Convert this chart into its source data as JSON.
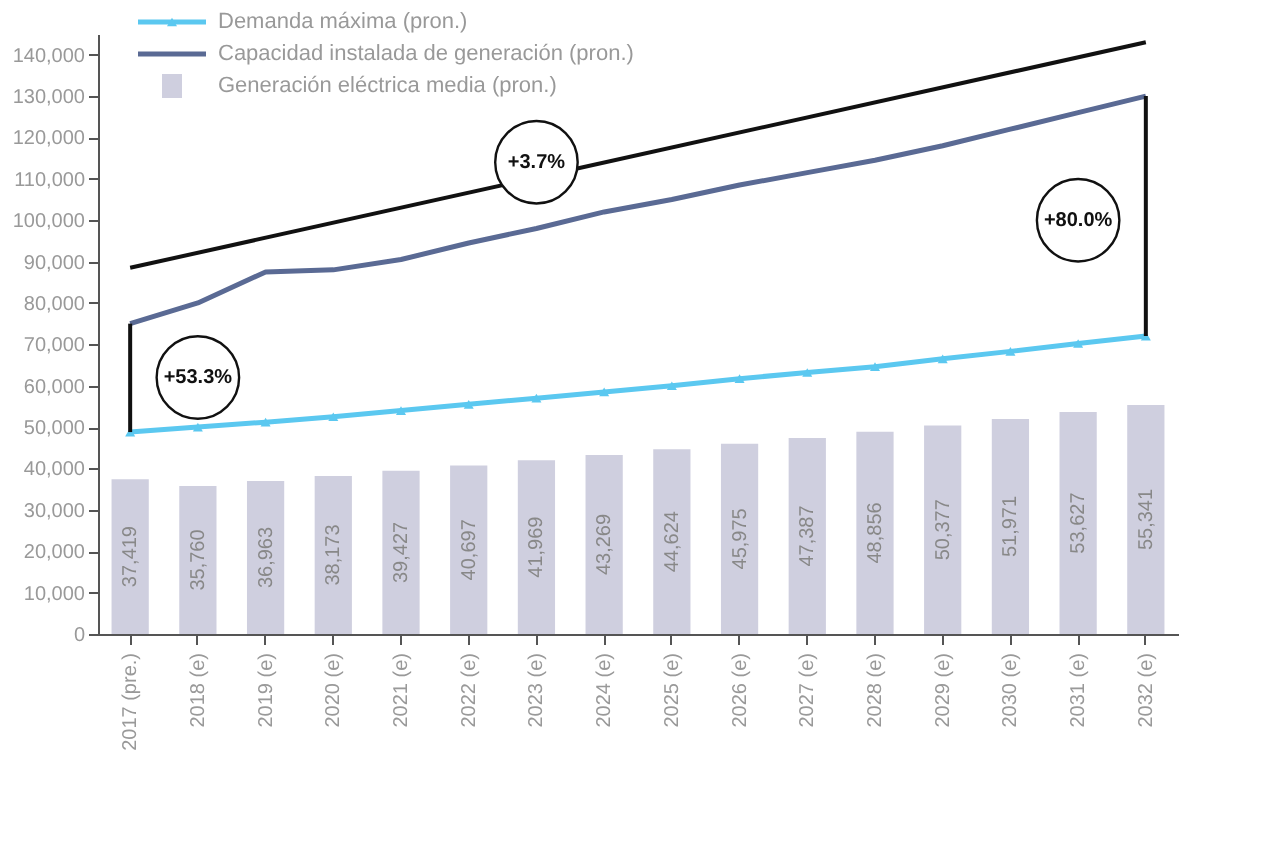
{
  "chart_data": {
    "type": "bar",
    "categories": [
      "2017 (pre.)",
      "2018 (e)",
      "2019 (e)",
      "2020 (e)",
      "2021 (e)",
      "2022 (e)",
      "2023 (e)",
      "2024 (e)",
      "2025 (e)",
      "2026 (e)",
      "2027 (e)",
      "2028 (e)",
      "2029 (e)",
      "2030 (e)",
      "2031 (e)",
      "2032 (e)"
    ],
    "series": [
      {
        "name": "Demanda máxima (pron.)",
        "type": "line",
        "marker": "triangle",
        "color": "#5bc8f0",
        "values": [
          48800,
          50000,
          51200,
          52500,
          54000,
          55500,
          57000,
          58500,
          60000,
          61700,
          63200,
          64600,
          66500,
          68300,
          70200,
          72000
        ]
      },
      {
        "name": "Capacidad instalada de generación (pron.)",
        "type": "line",
        "marker": "none",
        "color": "#5a6a94",
        "values": [
          75000,
          80000,
          87500,
          88000,
          90500,
          94500,
          98000,
          102000,
          105000,
          108500,
          111500,
          114500,
          118000,
          122000,
          126000,
          130000
        ]
      },
      {
        "name": "Generación eléctrica media (pron.)",
        "color": "#cfcfdf",
        "values": [
          37419,
          35760,
          36963,
          38173,
          39427,
          40697,
          41969,
          43269,
          44624,
          45975,
          47387,
          48856,
          50377,
          51971,
          53627,
          55341
        ],
        "value_labels": [
          "37,419",
          "35,760",
          "36,963",
          "38,173",
          "39,427",
          "40,697",
          "41,969",
          "43,269",
          "44,624",
          "45,975",
          "47,387",
          "48,856",
          "50,377",
          "51,971",
          "53,627",
          "55,341"
        ]
      },
      {
        "type": "line",
        "marker": "none",
        "color": "#111111",
        "x": [
          "2017 (pre.)",
          "2032 (e)"
        ],
        "values": [
          88500,
          143000
        ]
      },
      {
        "type": "line",
        "marker": "none",
        "color": "#111111",
        "x": [
          "2017 (pre.)",
          "2017 (pre.)"
        ],
        "values": [
          48800,
          75000
        ]
      },
      {
        "type": "line",
        "marker": "none",
        "color": "#111111",
        "x": [
          "2032 (e)",
          "2032 (e)"
        ],
        "values": [
          72000,
          130000
        ]
      }
    ],
    "ylim": [
      0,
      145000
    ],
    "yticks": [
      0,
      {
        "value": 10000,
        "label": "10,000"
      },
      {
        "value": 20000,
        "label": "20,000"
      },
      {
        "value": 30000,
        "label": "30,000"
      },
      {
        "value": 40000,
        "label": "40,000"
      },
      {
        "value": 50000,
        "label": "50,000"
      },
      {
        "value": 60000,
        "label": "60,000"
      },
      {
        "value": 70000,
        "label": "70,000"
      },
      {
        "value": 80000,
        "label": "80,000"
      },
      {
        "value": 90000,
        "label": "90,000"
      },
      {
        "value": 100000,
        "label": "100,000"
      },
      {
        "value": 110000,
        "label": "110,000"
      },
      {
        "value": 120000,
        "label": "120,000"
      },
      {
        "value": 130000,
        "label": "130,000"
      },
      {
        "value": 140000,
        "label": "140,000"
      }
    ],
    "grid": false,
    "legend": "top left",
    "annotations": [
      {
        "text": "+3.7%",
        "x": "2023 (e)",
        "y": 114000
      },
      {
        "text": "+53.3%",
        "x": "2018 (e)",
        "y": 62000
      },
      {
        "text": "+80.0%",
        "x": "2031 (e)",
        "y": 100000
      }
    ]
  }
}
